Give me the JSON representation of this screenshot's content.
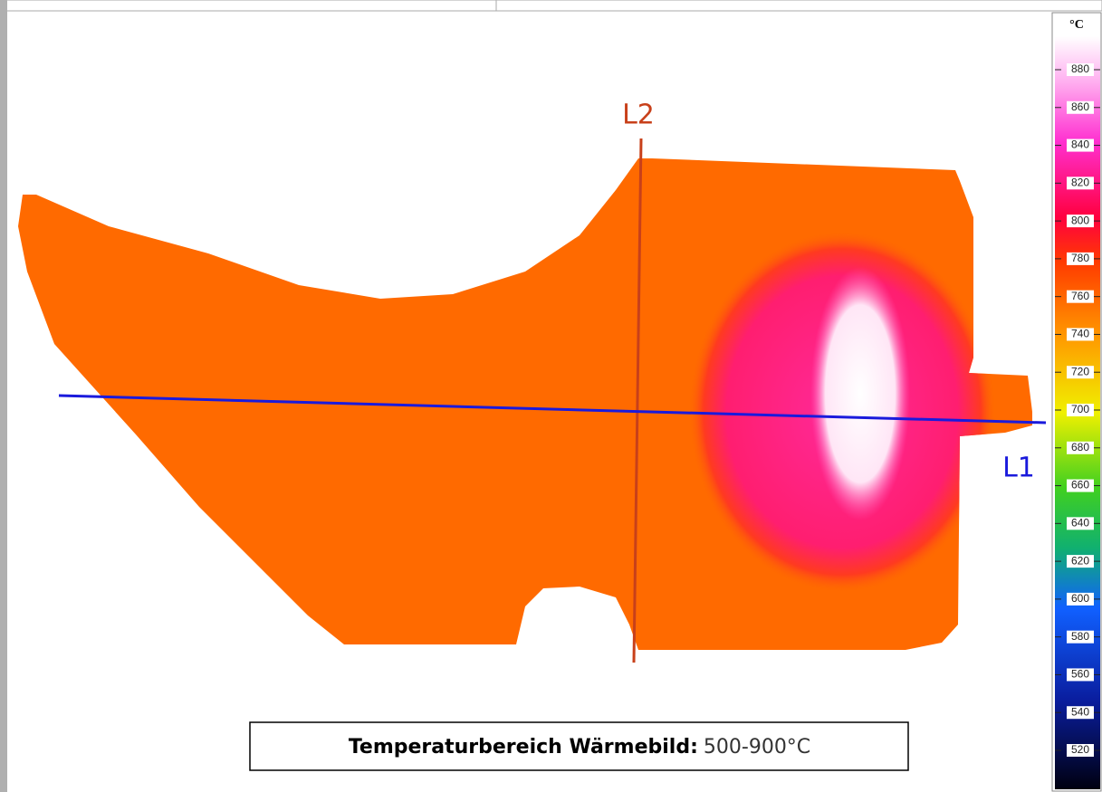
{
  "colorbar": {
    "unit": "°C",
    "ticks": [
      880,
      860,
      840,
      820,
      800,
      780,
      760,
      740,
      720,
      700,
      680,
      660,
      640,
      620,
      600,
      580,
      560,
      540,
      520
    ]
  },
  "lines": [
    {
      "label": "L2"
    },
    {
      "label": "L1"
    }
  ],
  "caption": {
    "label": "Temperaturbereich Wärmebild:",
    "value": "500-900°C"
  }
}
